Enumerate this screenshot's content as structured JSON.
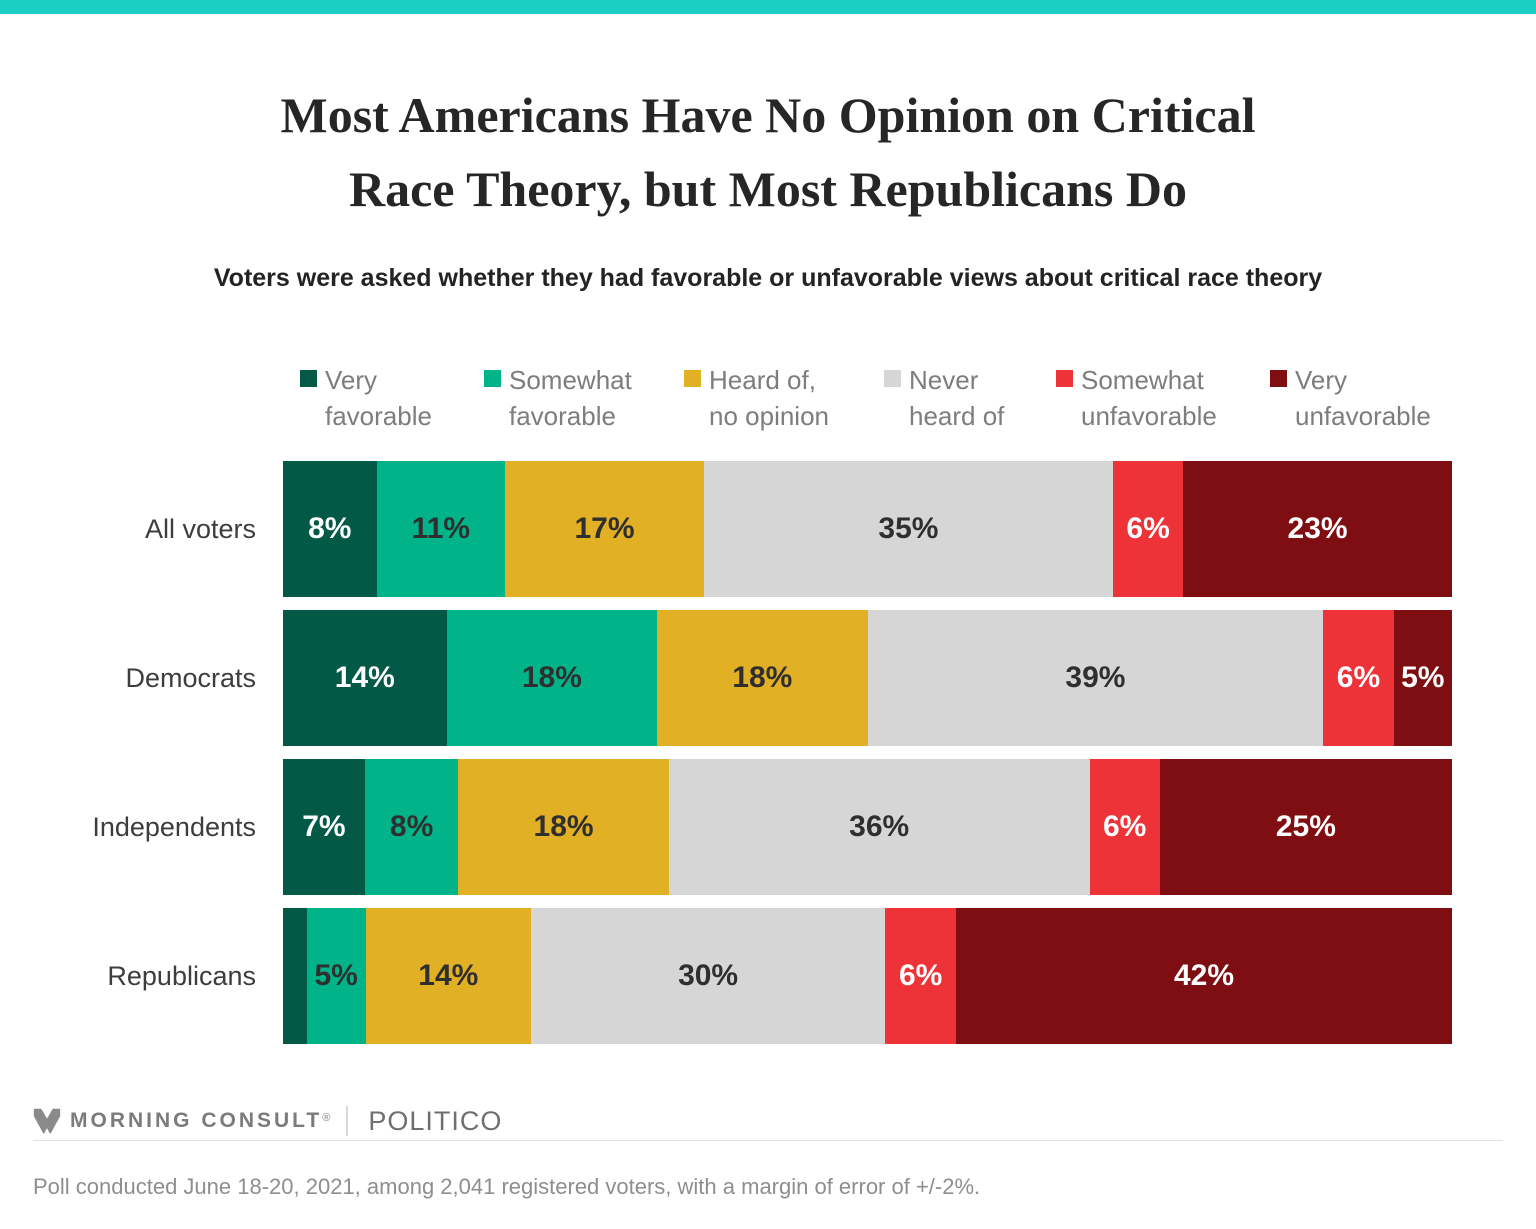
{
  "page": {
    "accent_color": "#1CCFC5",
    "title_line1": "Most Americans Have No Opinion on Critical",
    "title_line2": "Race Theory, but Most Republicans Do",
    "subtitle": "Voters were asked whether they had favorable or unfavorable views about critical race theory"
  },
  "chart_data": {
    "type": "bar",
    "stacked": true,
    "orientation": "horizontal",
    "unit": "percent",
    "xlim": [
      0,
      100
    ],
    "legend_position": "top",
    "grid": false,
    "categories": [
      "All voters",
      "Democrats",
      "Independents",
      "Republicans"
    ],
    "series": [
      {
        "name": "Very favorable",
        "legend_lines": [
          "Very",
          "favorable"
        ],
        "color": "#025946",
        "label_color": "#FFFFFF",
        "values": [
          8,
          14,
          7,
          2
        ],
        "value_labels": [
          "8%",
          "14%",
          "7%",
          ""
        ]
      },
      {
        "name": "Somewhat favorable",
        "legend_lines": [
          "Somewhat",
          "favorable"
        ],
        "color": "#00B389",
        "label_color": "#2f2f2f",
        "values": [
          11,
          18,
          8,
          5
        ],
        "value_labels": [
          "11%",
          "18%",
          "8%",
          "5%"
        ]
      },
      {
        "name": "Heard of, no opinion",
        "legend_lines": [
          "Heard of,",
          "no opinion"
        ],
        "color": "#E2B025",
        "label_color": "#2f2f2f",
        "values": [
          17,
          18,
          18,
          14
        ],
        "value_labels": [
          "17%",
          "18%",
          "18%",
          "14%"
        ]
      },
      {
        "name": "Never heard of",
        "legend_lines": [
          "Never",
          "heard of"
        ],
        "color": "#D6D6D6",
        "label_color": "#2f2f2f",
        "values": [
          35,
          39,
          36,
          30
        ],
        "value_labels": [
          "35%",
          "39%",
          "36%",
          "30%"
        ]
      },
      {
        "name": "Somewhat unfavorable",
        "legend_lines": [
          "Somewhat",
          "unfavorable"
        ],
        "color": "#EE3338",
        "label_color": "#FFFFFF",
        "values": [
          6,
          6,
          6,
          6
        ],
        "value_labels": [
          "6%",
          "6%",
          "6%",
          "6%"
        ]
      },
      {
        "name": "Very unfavorable",
        "legend_lines": [
          "Very",
          "unfavorable"
        ],
        "color": "#7E0E11",
        "label_color": "#FFFFFF",
        "values": [
          23,
          5,
          25,
          42
        ],
        "value_labels": [
          "23%",
          "5%",
          "25%",
          "42%"
        ]
      }
    ]
  },
  "footer": {
    "brand": "MORNING CONSULT",
    "registered_mark": "®",
    "partner": "POLITICO",
    "note": "Poll conducted June 18-20, 2021, among 2,041 registered voters, with a margin of error of +/-2%."
  }
}
